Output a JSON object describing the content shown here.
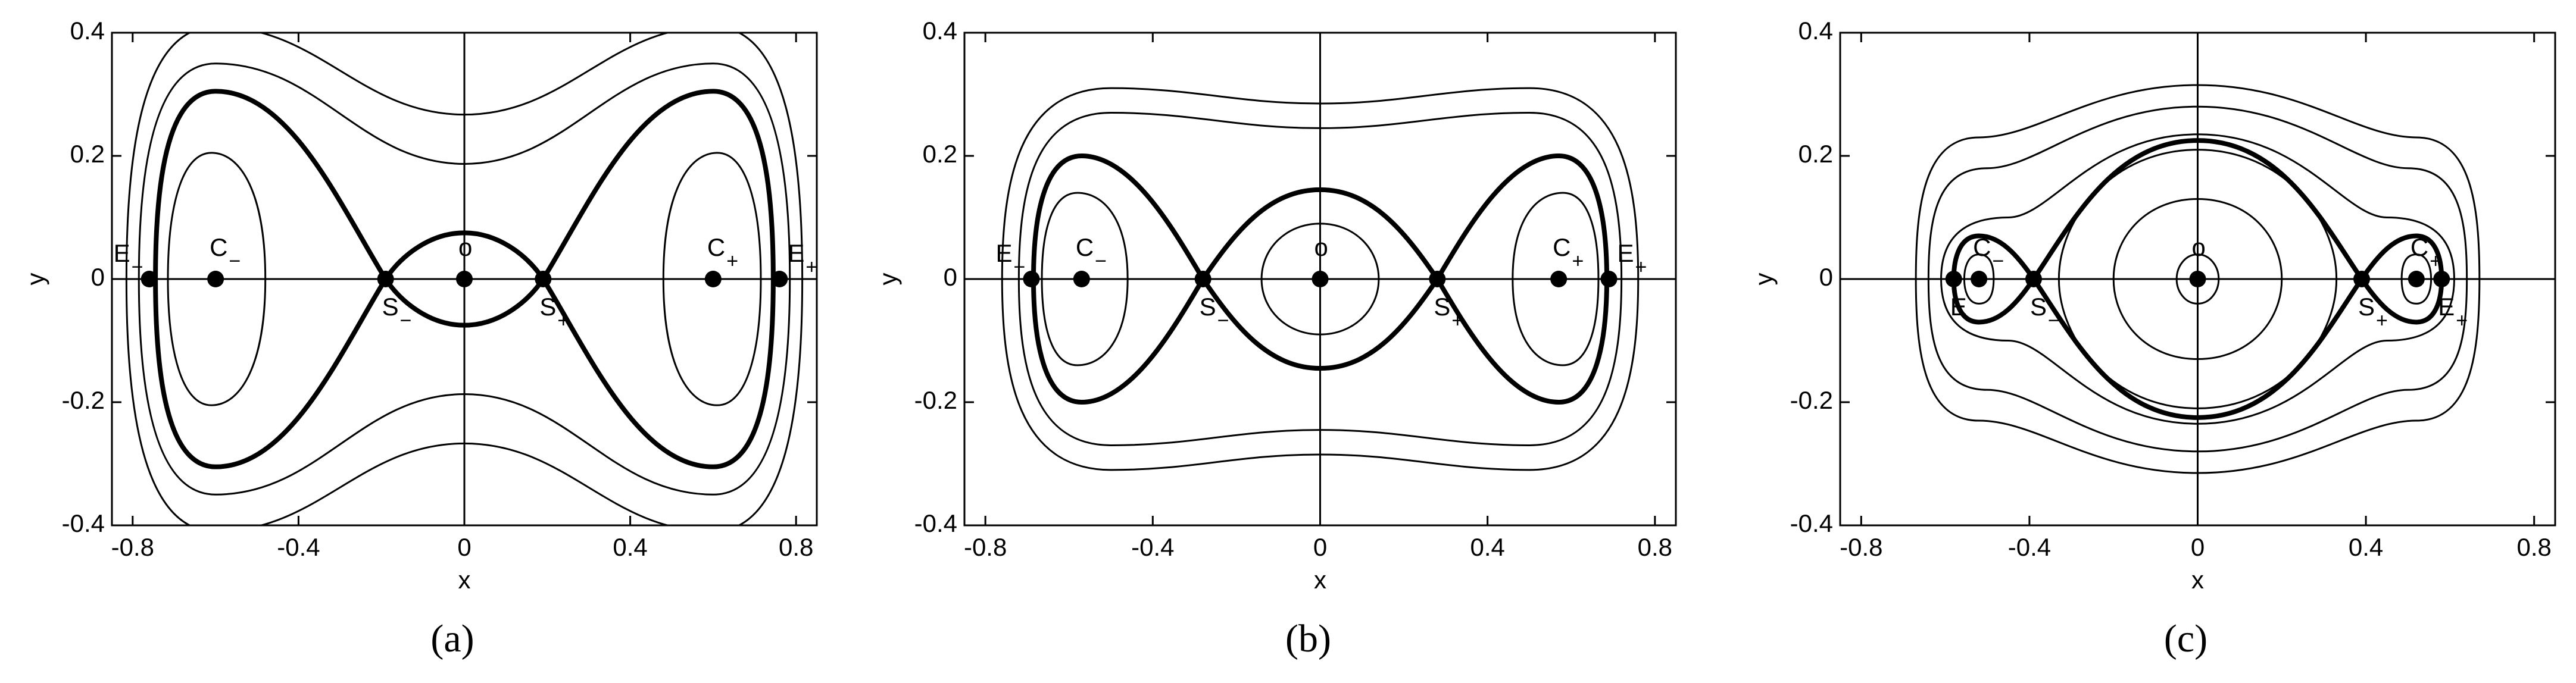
{
  "chart_data": [
    {
      "type": "scatter",
      "label": "(a)",
      "xlabel": "x",
      "ylabel": "y",
      "color": "#000000",
      "xlim": [
        -0.85,
        0.85
      ],
      "ylim": [
        -0.4,
        0.4
      ],
      "xticks": [
        -0.8,
        -0.4,
        0,
        0.4,
        0.8
      ],
      "yticks": [
        -0.4,
        -0.2,
        0,
        0.2,
        0.4
      ],
      "points": [
        {
          "name": "E",
          "sub": "−",
          "x": -0.76,
          "y": 0
        },
        {
          "name": "C",
          "sub": "−",
          "x": -0.6,
          "y": 0
        },
        {
          "name": "S",
          "sub": "−",
          "x": -0.19,
          "y": 0
        },
        {
          "name": "o",
          "x": 0,
          "y": 0
        },
        {
          "name": "S",
          "sub": "+",
          "x": 0.19,
          "y": 0
        },
        {
          "name": "C",
          "sub": "+",
          "x": 0.6,
          "y": 0
        },
        {
          "name": "E",
          "sub": "+",
          "x": 0.76,
          "y": 0
        }
      ]
    },
    {
      "type": "scatter",
      "label": "(b)",
      "xlabel": "x",
      "ylabel": "y",
      "color": "#000000",
      "xlim": [
        -0.85,
        0.85
      ],
      "ylim": [
        -0.4,
        0.4
      ],
      "xticks": [
        -0.8,
        -0.4,
        0,
        0.4,
        0.8
      ],
      "yticks": [
        -0.4,
        -0.2,
        0,
        0.2,
        0.4
      ],
      "points": [
        {
          "name": "E",
          "sub": "−",
          "x": -0.69,
          "y": 0
        },
        {
          "name": "C",
          "sub": "−",
          "x": -0.57,
          "y": 0
        },
        {
          "name": "S",
          "sub": "−",
          "x": -0.28,
          "y": 0
        },
        {
          "name": "o",
          "x": 0,
          "y": 0
        },
        {
          "name": "S",
          "sub": "+",
          "x": 0.28,
          "y": 0
        },
        {
          "name": "C",
          "sub": "+",
          "x": 0.57,
          "y": 0
        },
        {
          "name": "E",
          "sub": "+",
          "x": 0.69,
          "y": 0
        }
      ]
    },
    {
      "type": "scatter",
      "label": "(c)",
      "xlabel": "x",
      "ylabel": "y",
      "color": "#000000",
      "xlim": [
        -0.85,
        0.85
      ],
      "ylim": [
        -0.4,
        0.4
      ],
      "xticks": [
        -0.8,
        -0.4,
        0,
        0.4,
        0.8
      ],
      "yticks": [
        -0.4,
        -0.2,
        0,
        0.2,
        0.4
      ],
      "points": [
        {
          "name": "E",
          "sub": "−",
          "x": -0.58,
          "y": 0
        },
        {
          "name": "C",
          "sub": "−",
          "x": -0.52,
          "y": 0
        },
        {
          "name": "S",
          "sub": "−",
          "x": -0.39,
          "y": 0
        },
        {
          "name": "o",
          "x": 0,
          "y": 0
        },
        {
          "name": "S",
          "sub": "+",
          "x": 0.39,
          "y": 0
        },
        {
          "name": "C",
          "sub": "+",
          "x": 0.52,
          "y": 0
        },
        {
          "name": "E",
          "sub": "+",
          "x": 0.58,
          "y": 0
        }
      ]
    }
  ]
}
